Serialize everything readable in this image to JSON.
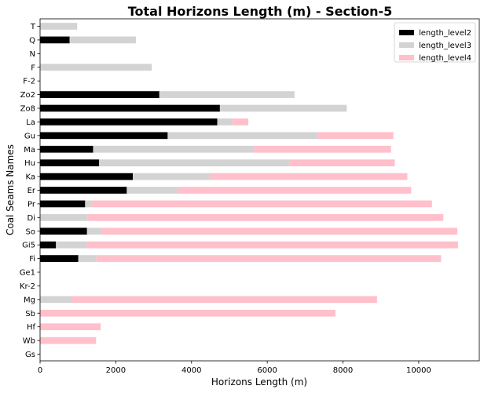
{
  "chart_data": {
    "type": "bar",
    "orientation": "horizontal",
    "stacked": true,
    "title": "Total Horizons Length (m) - Section-5",
    "xlabel": "Horizons Length (m)",
    "ylabel": "Coal Seams Names",
    "xlim": [
      0,
      11600
    ],
    "xticks": [
      0,
      2000,
      4000,
      6000,
      8000,
      10000
    ],
    "grid": false,
    "legend_position": "top-right",
    "categories": [
      "T",
      "Q",
      "N",
      "F",
      "F-2",
      "Zo2",
      "Zo8",
      "La",
      "Gu",
      "Ma",
      "Hu",
      "Ka",
      "Er",
      "Pr",
      "Di",
      "So",
      "Gi5",
      "Fi",
      "Ge1",
      "Kr-2",
      "Mg",
      "Sb",
      "Hf",
      "Wb",
      "Gs"
    ],
    "series": [
      {
        "name": "length_level2",
        "color": "#000000",
        "values": [
          0,
          780,
          0,
          0,
          0,
          3150,
          4750,
          4680,
          3370,
          1400,
          1560,
          2450,
          2290,
          1190,
          0,
          1240,
          420,
          1010,
          0,
          0,
          0,
          0,
          0,
          0,
          0
        ]
      },
      {
        "name": "length_level3",
        "color": "#d3d3d3",
        "values": [
          980,
          1750,
          0,
          2950,
          0,
          3570,
          3350,
          400,
          3960,
          4250,
          5020,
          2050,
          1360,
          160,
          1250,
          380,
          810,
          480,
          0,
          0,
          850,
          0,
          0,
          0,
          0
        ]
      },
      {
        "name": "length_level4",
        "color": "#ffc0cb",
        "values": [
          0,
          0,
          0,
          0,
          0,
          0,
          0,
          420,
          2000,
          3620,
          2790,
          5200,
          6150,
          9000,
          9400,
          9400,
          9810,
          9100,
          0,
          0,
          8050,
          7800,
          1600,
          1480,
          0
        ]
      }
    ]
  }
}
